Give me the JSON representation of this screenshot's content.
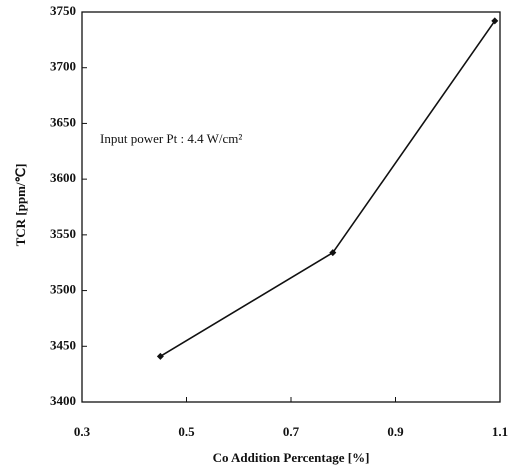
{
  "chart_data": {
    "type": "line",
    "annotation": "Input power Pt : 4.4 W/cm²",
    "x_label": "Co Addition Percentage [%]",
    "y_label": "TCR [ppm/℃]",
    "x": [
      0.45,
      0.78,
      1.09
    ],
    "values": [
      3441,
      3534,
      3742
    ],
    "color": "#111111",
    "xlim": [
      0.3,
      1.1
    ],
    "xticks": [
      0.3,
      0.5,
      0.7,
      0.9,
      1.1
    ],
    "ylim": [
      3400,
      3750
    ],
    "yticks": [
      3400,
      3450,
      3500,
      3550,
      3600,
      3650,
      3700,
      3750
    ],
    "grid": false
  }
}
